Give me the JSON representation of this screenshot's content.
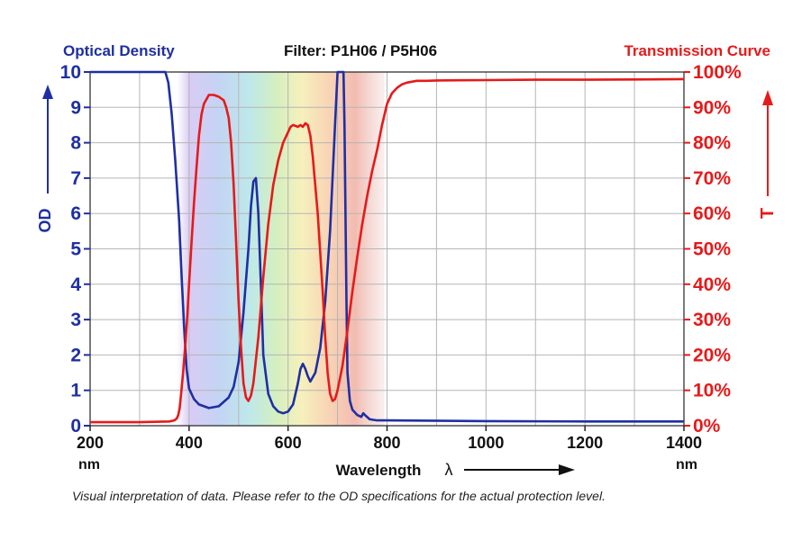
{
  "chart_data": {
    "type": "line",
    "title": "Filter: P1H06 / P5H06",
    "left_header": "Optical Density",
    "right_header": "Transmission Curve",
    "ylabel_left": "OD",
    "ylabel_right": "T",
    "xlabel": "Wavelength",
    "xlabel_symbol": "λ",
    "x_unit": "nm",
    "caption": "Visual interpretation of data. Please refer to the OD specifications for the actual protection level.",
    "xlim": [
      200,
      1400
    ],
    "ylim_left": [
      0,
      10
    ],
    "ylim_right": [
      0,
      100
    ],
    "x_ticks": [
      "200",
      "400",
      "600",
      "800",
      "1000",
      "1200",
      "1400"
    ],
    "y_ticks_left": [
      "0",
      "1",
      "2",
      "3",
      "4",
      "5",
      "6",
      "7",
      "8",
      "9",
      "10"
    ],
    "y_ticks_right": [
      "0%",
      "10%",
      "20%",
      "30%",
      "40%",
      "50%",
      "60%",
      "70%",
      "80%",
      "90%",
      "100%"
    ],
    "grid": true,
    "visible_spectrum_band_nm": [
      375,
      795
    ],
    "colors": {
      "od": "#1f2fa3",
      "transmission": "#e61a1a",
      "left_axis": "#1f2fa3",
      "right_axis": "#e61a1a",
      "grid": "#b5b5b5"
    },
    "series": [
      {
        "key": "od",
        "axis": "left",
        "x": [
          200,
          348,
          352,
          358,
          365,
          372,
          380,
          385,
          390,
          395,
          400,
          410,
          420,
          440,
          460,
          480,
          490,
          500,
          510,
          520,
          525,
          530,
          535,
          540,
          545,
          550,
          560,
          570,
          580,
          590,
          600,
          610,
          620,
          625,
          630,
          635,
          640,
          645,
          655,
          665,
          675,
          685,
          695,
          700,
          705,
          708,
          710,
          712,
          714,
          716,
          718,
          720,
          725,
          730,
          740,
          748,
          752,
          757,
          765,
          780,
          800,
          1000,
          1200,
          1400
        ],
        "y": [
          10,
          10,
          10,
          9.7,
          8.8,
          7.5,
          5.8,
          4.2,
          2.8,
          1.6,
          1.05,
          0.75,
          0.6,
          0.5,
          0.55,
          0.8,
          1.1,
          1.8,
          3.2,
          5.0,
          6.2,
          6.9,
          7.0,
          6.0,
          4.0,
          2.0,
          0.9,
          0.55,
          0.4,
          0.35,
          0.4,
          0.6,
          1.2,
          1.6,
          1.75,
          1.6,
          1.4,
          1.25,
          1.5,
          2.2,
          3.5,
          5.5,
          8.5,
          10,
          10,
          10,
          10,
          10,
          8.5,
          6.0,
          3.5,
          1.5,
          0.7,
          0.45,
          0.3,
          0.25,
          0.35,
          0.28,
          0.18,
          0.15,
          0.15,
          0.13,
          0.12,
          0.12
        ]
      },
      {
        "key": "transmission",
        "axis": "right",
        "x": [
          200,
          300,
          360,
          370,
          375,
          378,
          381,
          384,
          388,
          392,
          396,
          400,
          405,
          410,
          415,
          420,
          425,
          430,
          440,
          450,
          460,
          470,
          475,
          480,
          485,
          490,
          495,
          500,
          505,
          510,
          515,
          520,
          525,
          530,
          540,
          550,
          560,
          570,
          580,
          590,
          600,
          605,
          610,
          620,
          625,
          630,
          635,
          640,
          645,
          650,
          660,
          670,
          675,
          680,
          685,
          690,
          695,
          700,
          710,
          720,
          730,
          740,
          750,
          760,
          770,
          780,
          790,
          800,
          810,
          820,
          830,
          840,
          860,
          880,
          900,
          1000,
          1100,
          1200,
          1300,
          1400
        ],
        "y": [
          1,
          1,
          1.2,
          1.5,
          2,
          3,
          5,
          9,
          15,
          22,
          30,
          40,
          52,
          63,
          73,
          82,
          88,
          91,
          93.5,
          93.5,
          93,
          92,
          90,
          87,
          80,
          68,
          52,
          35,
          22,
          12,
          8,
          7,
          8.5,
          12,
          25,
          42,
          57,
          68,
          75,
          80,
          83,
          84.5,
          85,
          84.5,
          85,
          84.5,
          85.5,
          85,
          82,
          76,
          60,
          38,
          25,
          15,
          9,
          7,
          7.5,
          10,
          17,
          27,
          38,
          48,
          57,
          65,
          72,
          78,
          85,
          91,
          94,
          95.5,
          96.5,
          97,
          97.5,
          97.5,
          97.6,
          97.7,
          97.8,
          97.8,
          97.9,
          98
        ]
      }
    ]
  }
}
